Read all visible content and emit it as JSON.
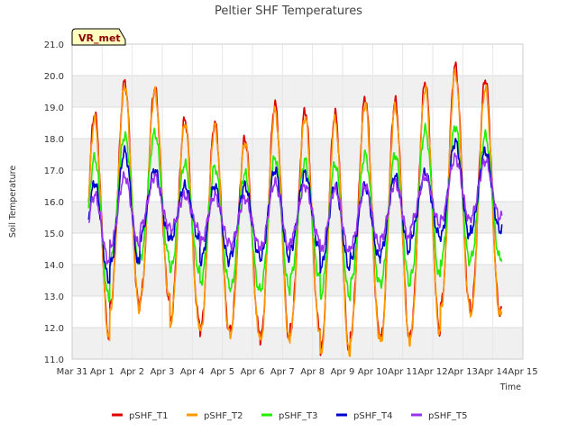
{
  "chart_data": {
    "type": "line",
    "title": "Peltier SHF Temperatures",
    "xlabel": "Time",
    "ylabel": "Soil Temperature",
    "ylim": [
      11.0,
      21.0
    ],
    "xlim": [
      "Mar 31",
      "Apr 15"
    ],
    "x_ticks": [
      "Mar 31",
      "Apr 1",
      "Apr 2",
      "Apr 3",
      "Apr 4",
      "Apr 5",
      "Apr 6",
      "Apr 7",
      "Apr 8",
      "Apr 9",
      "Apr 10",
      "Apr 11",
      "Apr 12",
      "Apr 13",
      "Apr 14",
      "Apr 15"
    ],
    "y_ticks": [
      "11.0",
      "12.0",
      "13.0",
      "14.0",
      "15.0",
      "16.0",
      "17.0",
      "18.0",
      "19.0",
      "20.0",
      "21.0"
    ],
    "grid": true,
    "background_bands": "alternating light gray",
    "legend_position": "bottom",
    "badge": "VR_met",
    "x_day_range": [
      0.55,
      14.3
    ],
    "series": [
      {
        "name": "pSHF_T1",
        "color": "#dd0000",
        "daily_max": [
          18.8,
          19.8,
          19.6,
          18.6,
          18.5,
          18.0,
          19.1,
          18.9,
          18.8,
          19.3,
          19.2,
          19.8,
          20.3,
          19.9
        ],
        "daily_min": [
          11.7,
          12.7,
          12.9,
          12.2,
          11.9,
          11.9,
          11.6,
          12.0,
          11.2,
          11.8,
          11.6,
          11.9,
          12.7,
          12.5
        ]
      },
      {
        "name": "pSHF_T2",
        "color": "#ff9900",
        "daily_max": [
          18.6,
          19.7,
          19.5,
          18.5,
          18.4,
          17.9,
          18.9,
          18.7,
          18.6,
          19.1,
          19.0,
          19.6,
          20.1,
          19.6
        ],
        "daily_min": [
          11.6,
          12.6,
          12.9,
          12.1,
          11.8,
          11.8,
          11.5,
          11.9,
          11.1,
          11.7,
          11.5,
          11.8,
          12.6,
          12.4
        ]
      },
      {
        "name": "pSHF_T3",
        "color": "#22ee00",
        "daily_max": [
          17.4,
          18.1,
          18.2,
          17.2,
          17.1,
          16.9,
          17.4,
          17.3,
          17.2,
          17.5,
          17.5,
          18.3,
          18.4,
          18.1
        ],
        "daily_min": [
          12.9,
          14.1,
          14.2,
          13.8,
          13.4,
          13.2,
          13.2,
          13.6,
          13.0,
          13.4,
          13.4,
          13.6,
          14.1,
          14.2
        ]
      },
      {
        "name": "pSHF_T4",
        "color": "#0000cc",
        "daily_max": [
          16.6,
          17.6,
          17.0,
          16.5,
          16.5,
          16.5,
          17.0,
          16.9,
          16.5,
          16.5,
          16.8,
          16.9,
          17.9,
          17.6
        ],
        "daily_min": [
          13.5,
          14.0,
          14.9,
          14.8,
          14.1,
          14.3,
          14.2,
          14.5,
          13.9,
          14.2,
          14.4,
          14.9,
          14.9,
          15.1
        ]
      },
      {
        "name": "pSHF_T5",
        "color": "#9933ee",
        "daily_max": [
          16.2,
          16.8,
          16.8,
          16.2,
          16.2,
          16.1,
          16.6,
          16.5,
          16.4,
          16.5,
          16.6,
          16.8,
          17.4,
          17.3
        ],
        "daily_min": [
          14.1,
          14.6,
          15.2,
          15.1,
          14.7,
          14.6,
          14.5,
          14.8,
          14.4,
          14.6,
          14.8,
          15.3,
          15.4,
          15.5
        ]
      }
    ]
  }
}
